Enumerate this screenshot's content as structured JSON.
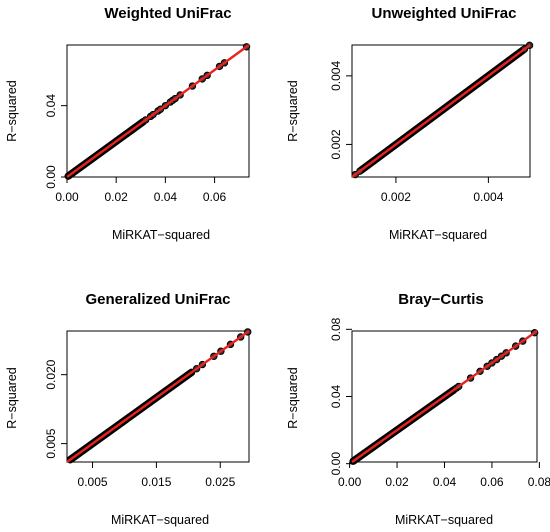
{
  "chart_data": [
    {
      "type": "scatter",
      "title": "Weighted UniFrac",
      "xlabel": "MiRKAT−squared",
      "ylabel": "R−squared",
      "xlim": [
        0,
        0.074
      ],
      "ylim": [
        0,
        0.074
      ],
      "xticks": [
        {
          "v": 0.0,
          "label": "0.00"
        },
        {
          "v": 0.02,
          "label": "0.02"
        },
        {
          "v": 0.04,
          "label": "0.04"
        },
        {
          "v": 0.06,
          "label": "0.06"
        }
      ],
      "yticks": [
        {
          "v": 0.0,
          "label": "0.00"
        },
        {
          "v": 0.04,
          "label": "0.04"
        }
      ],
      "dense_range": [
        0.0005,
        0.031
      ],
      "points": [
        [
          0.032,
          0.032
        ],
        [
          0.034,
          0.034
        ],
        [
          0.035,
          0.035
        ],
        [
          0.037,
          0.037
        ],
        [
          0.038,
          0.038
        ],
        [
          0.04,
          0.04
        ],
        [
          0.042,
          0.042
        ],
        [
          0.043,
          0.043
        ],
        [
          0.044,
          0.044
        ],
        [
          0.046,
          0.046
        ],
        [
          0.051,
          0.051
        ],
        [
          0.055,
          0.055
        ],
        [
          0.057,
          0.057
        ],
        [
          0.062,
          0.062
        ],
        [
          0.064,
          0.064
        ],
        [
          0.073,
          0.073
        ]
      ]
    },
    {
      "type": "scatter",
      "title": "Unweighted UniFrac",
      "xlabel": "MiRKAT−squared",
      "ylabel": "R−squared",
      "xlim": [
        0.00105,
        0.0049
      ],
      "ylim": [
        0.00105,
        0.0049
      ],
      "xticks": [
        {
          "v": 0.002,
          "label": "0.002"
        },
        {
          "v": 0.004,
          "label": "0.004"
        }
      ],
      "yticks": [
        {
          "v": 0.002,
          "label": "0.002"
        },
        {
          "v": 0.004,
          "label": "0.004"
        }
      ],
      "dense_range": [
        0.00125,
        0.00475
      ],
      "points": [
        [
          0.00112,
          0.00112
        ],
        [
          0.00122,
          0.00122
        ],
        [
          0.00478,
          0.00478
        ],
        [
          0.00489,
          0.00489
        ]
      ]
    },
    {
      "type": "scatter",
      "title": "Generalized UniFrac",
      "xlabel": "MiRKAT−squared",
      "ylabel": "R−squared",
      "xlim": [
        0.001,
        0.0295
      ],
      "ylim": [
        0.001,
        0.0295
      ],
      "xticks": [
        {
          "v": 0.005,
          "label": "0.005"
        },
        {
          "v": 0.015,
          "label": "0.015"
        },
        {
          "v": 0.025,
          "label": "0.025"
        }
      ],
      "yticks": [
        {
          "v": 0.005,
          "label": "0.005"
        },
        {
          "v": 0.02,
          "label": "0.020"
        }
      ],
      "dense_range": [
        0.0015,
        0.0205
      ],
      "points": [
        [
          0.0213,
          0.0213
        ],
        [
          0.0222,
          0.0222
        ],
        [
          0.024,
          0.024
        ],
        [
          0.0251,
          0.0251
        ],
        [
          0.0266,
          0.0266
        ],
        [
          0.0282,
          0.0282
        ],
        [
          0.0293,
          0.0293
        ]
      ]
    },
    {
      "type": "scatter",
      "title": "Bray−Curtis",
      "xlabel": "MiRKAT−squared",
      "ylabel": "R−squared",
      "xlim": [
        0.001,
        0.079
      ],
      "ylim": [
        0.001,
        0.079
      ],
      "xticks": [
        {
          "v": 0.0,
          "label": "0.00"
        },
        {
          "v": 0.02,
          "label": "0.02"
        },
        {
          "v": 0.04,
          "label": "0.04"
        },
        {
          "v": 0.06,
          "label": "0.06"
        },
        {
          "v": 0.08,
          "label": "0.08"
        }
      ],
      "yticks": [
        {
          "v": 0.0,
          "label": "0.00"
        },
        {
          "v": 0.04,
          "label": "0.04"
        },
        {
          "v": 0.08,
          "label": "0.08"
        }
      ],
      "dense_range": [
        0.0015,
        0.044
      ],
      "points": [
        [
          0.045,
          0.045
        ],
        [
          0.046,
          0.046
        ],
        [
          0.051,
          0.051
        ],
        [
          0.055,
          0.055
        ],
        [
          0.058,
          0.058
        ],
        [
          0.06,
          0.06
        ],
        [
          0.062,
          0.062
        ],
        [
          0.064,
          0.064
        ],
        [
          0.066,
          0.066
        ],
        [
          0.07,
          0.07
        ],
        [
          0.073,
          0.073
        ],
        [
          0.078,
          0.078
        ]
      ]
    }
  ],
  "colors": {
    "points": "#000000",
    "fit_line": "#e8231f",
    "point_fill": "#333333"
  }
}
